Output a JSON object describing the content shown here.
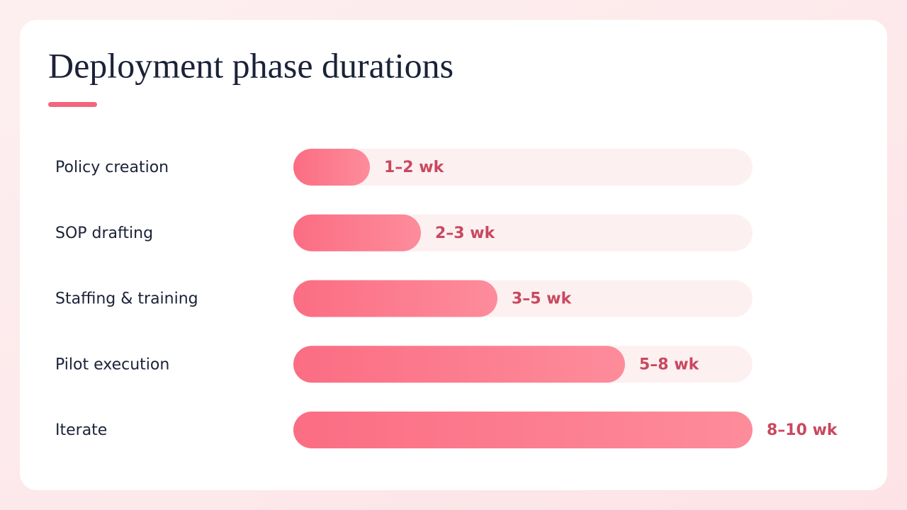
{
  "chart_data": {
    "type": "bar",
    "orientation": "horizontal",
    "title": "Deployment phase durations",
    "categories": [
      "Policy creation",
      "SOP drafting",
      "Staffing & training",
      "Pilot execution",
      "Iterate"
    ],
    "values": [
      1.5,
      2.5,
      4,
      6.5,
      9
    ],
    "value_labels": [
      "1–2 wk",
      "2–3 wk",
      "3–5 wk",
      "5–8 wk",
      "8–10 wk"
    ],
    "color": "#fb6d83",
    "xlim": [
      0,
      9
    ]
  }
}
